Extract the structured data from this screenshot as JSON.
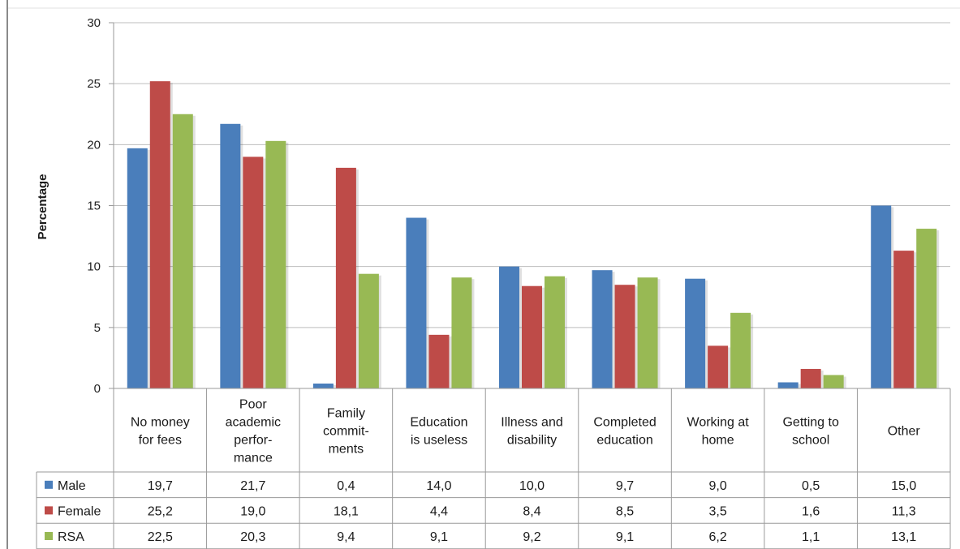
{
  "chart_data": {
    "type": "bar",
    "title": "",
    "xlabel": "",
    "ylabel": "Percentage",
    "ylim": [
      0,
      30
    ],
    "yticks": [
      0,
      5,
      10,
      15,
      20,
      25,
      30
    ],
    "grid": true,
    "legend_placement": "data-table-left",
    "categories": [
      [
        "No money",
        "for fees"
      ],
      [
        "Poor",
        "academic",
        "perfor-",
        "mance"
      ],
      [
        "Family",
        "commit-",
        "ments"
      ],
      [
        "Education",
        "is useless"
      ],
      [
        "Illness and",
        "disability"
      ],
      [
        "Completed",
        "education"
      ],
      [
        "Working at",
        "home"
      ],
      [
        "Getting to",
        "school"
      ],
      [
        "Other"
      ]
    ],
    "series": [
      {
        "name": "Male",
        "color": "#4a7ebb",
        "values": [
          19.7,
          21.7,
          0.4,
          14.0,
          10.0,
          9.7,
          9.0,
          0.5,
          15.0
        ],
        "labels": [
          "19,7",
          "21,7",
          "0,4",
          "14,0",
          "10,0",
          "9,7",
          "9,0",
          "0,5",
          "15,0"
        ]
      },
      {
        "name": "Female",
        "color": "#be4b48",
        "values": [
          25.2,
          19.0,
          18.1,
          4.4,
          8.4,
          8.5,
          3.5,
          1.6,
          11.3
        ],
        "labels": [
          "25,2",
          "19,0",
          "18,1",
          "4,4",
          "8,4",
          "8,5",
          "3,5",
          "1,6",
          "11,3"
        ]
      },
      {
        "name": "RSA",
        "color": "#98b954",
        "values": [
          22.5,
          20.3,
          9.4,
          9.1,
          9.2,
          9.1,
          6.2,
          1.1,
          13.1
        ],
        "labels": [
          "22,5",
          "20,3",
          "9,4",
          "9,1",
          "9,2",
          "9,1",
          "6,2",
          "1,1",
          "13,1"
        ]
      }
    ]
  }
}
